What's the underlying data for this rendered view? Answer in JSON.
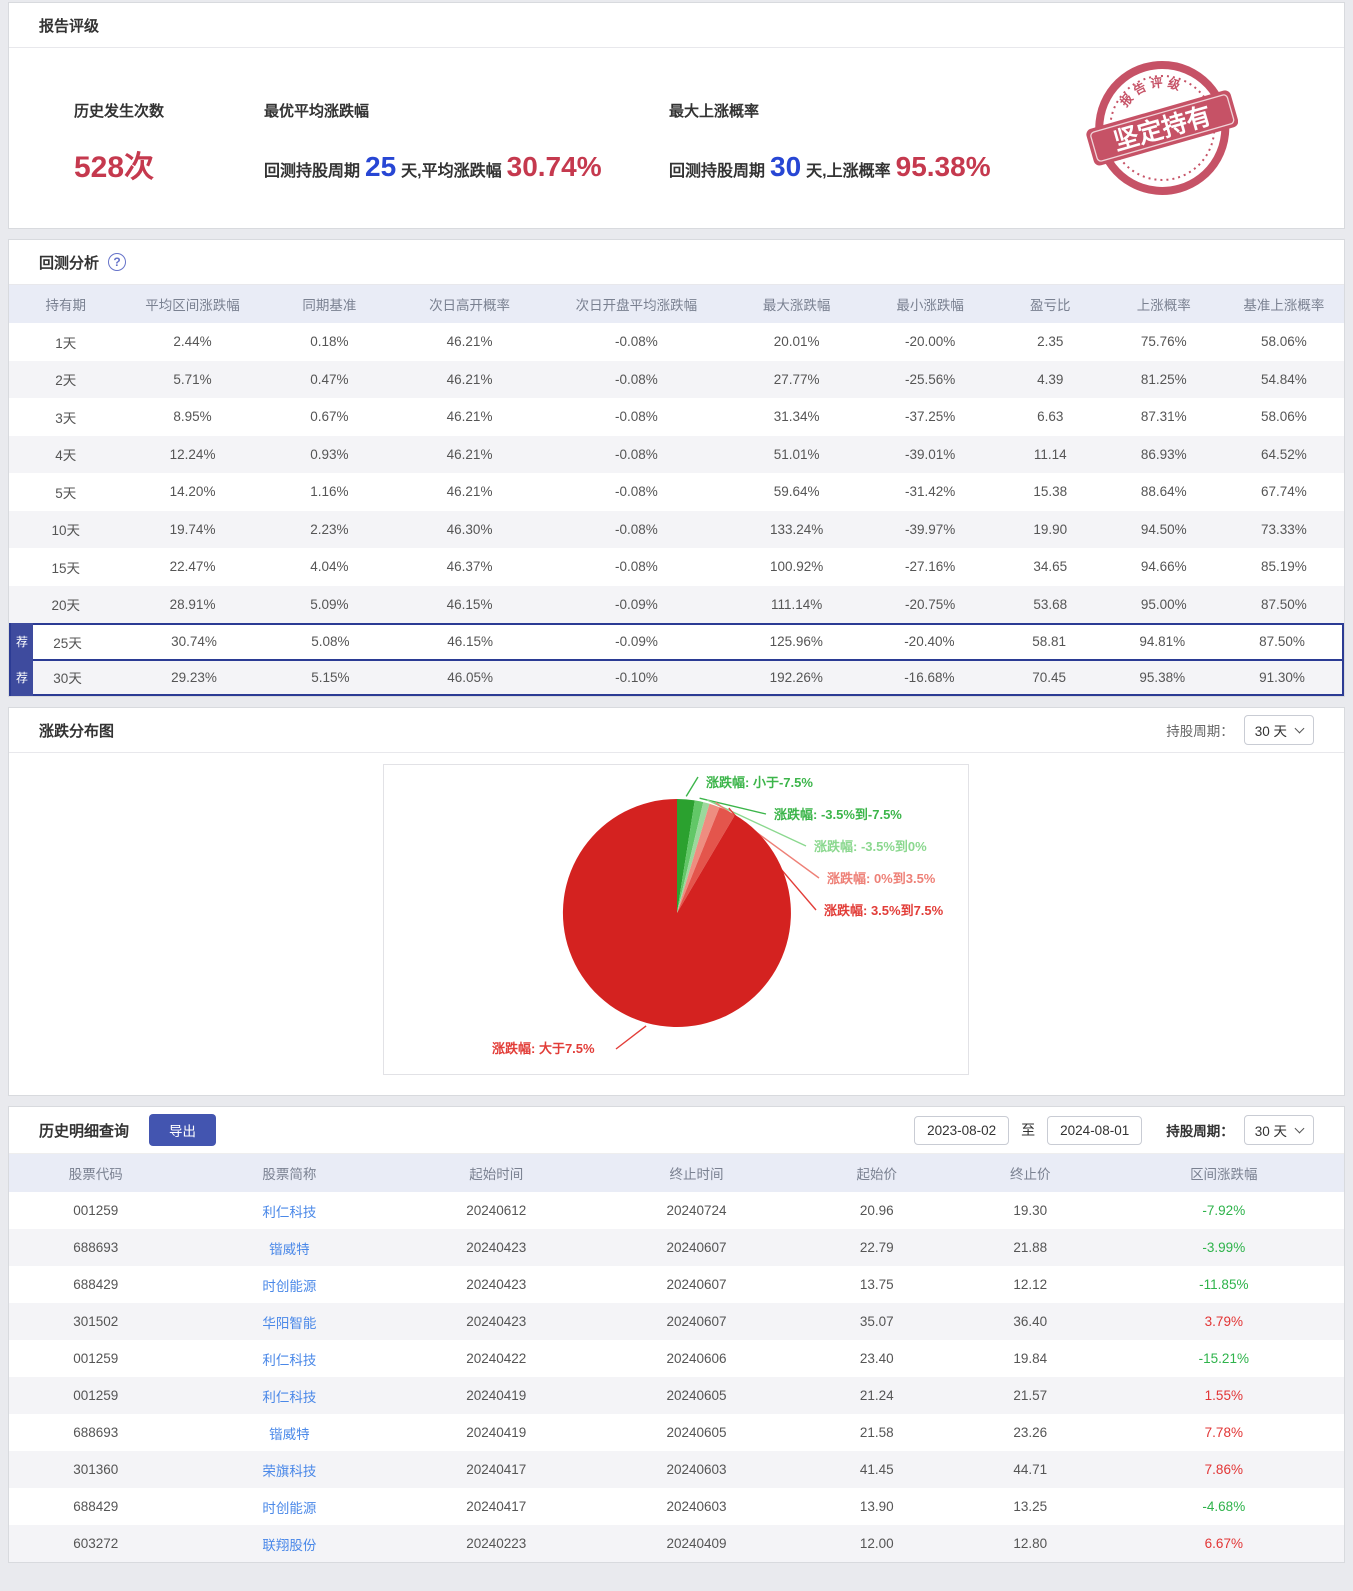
{
  "icons": {
    "help": "?"
  },
  "rating": {
    "title": "报告评级",
    "stats": [
      {
        "label": "历史发生次数",
        "value": "528次"
      },
      {
        "label": "最优平均涨跌幅",
        "prefix": "回测持股周期",
        "days": "25",
        "mid": "天,平均涨跌幅",
        "value": "30.74%"
      },
      {
        "label": "最大上涨概率",
        "prefix": "回测持股周期",
        "days": "30",
        "mid": "天,上涨概率",
        "value": "95.38%"
      }
    ],
    "stamp": {
      "top": "报告评级",
      "main": "坚定持有",
      "color": "#bf3b52"
    }
  },
  "backtest": {
    "title": "回测分析",
    "recommended_badge": "荐",
    "columns": [
      "持有期",
      "平均区间涨跌幅",
      "同期基准",
      "次日高开概率",
      "次日开盘平均涨跌幅",
      "最大涨跌幅",
      "最小涨跌幅",
      "盈亏比",
      "上涨概率",
      "基准上涨概率"
    ],
    "rows": [
      {
        "cells": [
          "1天",
          "2.44%",
          "0.18%",
          "46.21%",
          "-0.08%",
          "20.01%",
          "-20.00%",
          "2.35",
          "75.76%",
          "58.06%"
        ],
        "recommended": false
      },
      {
        "cells": [
          "2天",
          "5.71%",
          "0.47%",
          "46.21%",
          "-0.08%",
          "27.77%",
          "-25.56%",
          "4.39",
          "81.25%",
          "54.84%"
        ],
        "recommended": false
      },
      {
        "cells": [
          "3天",
          "8.95%",
          "0.67%",
          "46.21%",
          "-0.08%",
          "31.34%",
          "-37.25%",
          "6.63",
          "87.31%",
          "58.06%"
        ],
        "recommended": false
      },
      {
        "cells": [
          "4天",
          "12.24%",
          "0.93%",
          "46.21%",
          "-0.08%",
          "51.01%",
          "-39.01%",
          "11.14",
          "86.93%",
          "64.52%"
        ],
        "recommended": false
      },
      {
        "cells": [
          "5天",
          "14.20%",
          "1.16%",
          "46.21%",
          "-0.08%",
          "59.64%",
          "-31.42%",
          "15.38",
          "88.64%",
          "67.74%"
        ],
        "recommended": false
      },
      {
        "cells": [
          "10天",
          "19.74%",
          "2.23%",
          "46.30%",
          "-0.08%",
          "133.24%",
          "-39.97%",
          "19.90",
          "94.50%",
          "73.33%"
        ],
        "recommended": false
      },
      {
        "cells": [
          "15天",
          "22.47%",
          "4.04%",
          "46.37%",
          "-0.08%",
          "100.92%",
          "-27.16%",
          "34.65",
          "94.66%",
          "85.19%"
        ],
        "recommended": false
      },
      {
        "cells": [
          "20天",
          "28.91%",
          "5.09%",
          "46.15%",
          "-0.09%",
          "111.14%",
          "-20.75%",
          "53.68",
          "95.00%",
          "87.50%"
        ],
        "recommended": false
      },
      {
        "cells": [
          "25天",
          "30.74%",
          "5.08%",
          "46.15%",
          "-0.09%",
          "125.96%",
          "-20.40%",
          "58.81",
          "94.81%",
          "87.50%"
        ],
        "recommended": true
      },
      {
        "cells": [
          "30天",
          "29.23%",
          "5.15%",
          "46.05%",
          "-0.10%",
          "192.26%",
          "-16.68%",
          "70.45",
          "95.38%",
          "91.30%"
        ],
        "recommended": true
      }
    ]
  },
  "distribution": {
    "title": "涨跌分布图",
    "period_label": "持股周期：",
    "period_value": "30 天"
  },
  "chart_data": {
    "type": "pie",
    "title": "涨跌分布图",
    "holding_period": "30 天",
    "legend_position": "callout-labels",
    "slices": [
      {
        "label": "涨跌幅: 小于-7.5%",
        "value": 2.5,
        "color": "#2ba12f",
        "label_color": "#3cb54a"
      },
      {
        "label": "涨跌幅: -3.5%到-7.5%",
        "value": 1.2,
        "color": "#62c767",
        "label_color": "#3cb54a"
      },
      {
        "label": "涨跌幅: -3.5%到0%",
        "value": 0.9,
        "color": "#9bd89c",
        "label_color": "#8bd88f"
      },
      {
        "label": "涨跌幅: 0%到3.5%",
        "value": 1.5,
        "color": "#ee8d80",
        "label_color": "#ee8077"
      },
      {
        "label": "涨跌幅: 3.5%到7.5%",
        "value": 2.4,
        "color": "#e4554c",
        "label_color": "#e23d38"
      },
      {
        "label": "涨跌幅: 大于7.5%",
        "value": 91.5,
        "color": "#d42220",
        "label_color": "#e23d38"
      }
    ]
  },
  "history": {
    "title": "历史明细查询",
    "export_label": "导出",
    "date_from": "2023-08-02",
    "to_label": "至",
    "date_to": "2024-08-01",
    "period_label": "持股周期：",
    "period_value": "30 天",
    "columns": [
      "股票代码",
      "股票简称",
      "起始时间",
      "终止时间",
      "起始价",
      "终止价",
      "区间涨跌幅"
    ],
    "rows": [
      {
        "code": "001259",
        "name": "利仁科技",
        "start_date": "20240612",
        "end_date": "20240724",
        "start_price": "20.96",
        "end_price": "19.30",
        "change": "-7.92%"
      },
      {
        "code": "688693",
        "name": "锴威特",
        "start_date": "20240423",
        "end_date": "20240607",
        "start_price": "22.79",
        "end_price": "21.88",
        "change": "-3.99%"
      },
      {
        "code": "688429",
        "name": "时创能源",
        "start_date": "20240423",
        "end_date": "20240607",
        "start_price": "13.75",
        "end_price": "12.12",
        "change": "-11.85%"
      },
      {
        "code": "301502",
        "name": "华阳智能",
        "start_date": "20240423",
        "end_date": "20240607",
        "start_price": "35.07",
        "end_price": "36.40",
        "change": "3.79%"
      },
      {
        "code": "001259",
        "name": "利仁科技",
        "start_date": "20240422",
        "end_date": "20240606",
        "start_price": "23.40",
        "end_price": "19.84",
        "change": "-15.21%"
      },
      {
        "code": "001259",
        "name": "利仁科技",
        "start_date": "20240419",
        "end_date": "20240605",
        "start_price": "21.24",
        "end_price": "21.57",
        "change": "1.55%"
      },
      {
        "code": "688693",
        "name": "锴威特",
        "start_date": "20240419",
        "end_date": "20240605",
        "start_price": "21.58",
        "end_price": "23.26",
        "change": "7.78%"
      },
      {
        "code": "301360",
        "name": "荣旗科技",
        "start_date": "20240417",
        "end_date": "20240603",
        "start_price": "41.45",
        "end_price": "44.71",
        "change": "7.86%"
      },
      {
        "code": "688429",
        "name": "时创能源",
        "start_date": "20240417",
        "end_date": "20240603",
        "start_price": "13.90",
        "end_price": "13.25",
        "change": "-4.68%"
      },
      {
        "code": "603272",
        "name": "联翔股份",
        "start_date": "20240223",
        "end_date": "20240409",
        "start_price": "12.00",
        "end_price": "12.80",
        "change": "6.67%"
      }
    ]
  }
}
